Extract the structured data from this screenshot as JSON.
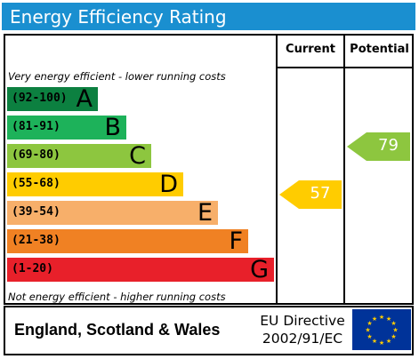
{
  "title": "Energy Efficiency Rating",
  "columns": {
    "current": "Current",
    "potential": "Potential"
  },
  "notes": {
    "top": "Very energy efficient - lower running costs",
    "bottom": "Not energy efficient - higher running costs"
  },
  "bands": [
    {
      "range": "(92-100)",
      "letter": "A",
      "color": "#0c8040"
    },
    {
      "range": "(81-91)",
      "letter": "B",
      "color": "#1db25a"
    },
    {
      "range": "(69-80)",
      "letter": "C",
      "color": "#8dc63f"
    },
    {
      "range": "(55-68)",
      "letter": "D",
      "color": "#ffcc00"
    },
    {
      "range": "(39-54)",
      "letter": "E",
      "color": "#f7af6a"
    },
    {
      "range": "(21-38)",
      "letter": "F",
      "color": "#f08123"
    },
    {
      "range": "(1-20)",
      "letter": "G",
      "color": "#e8202a"
    }
  ],
  "current": {
    "value": "57",
    "color": "#ffcc00"
  },
  "potential": {
    "value": "79",
    "color": "#8dc63f"
  },
  "footer": {
    "region": "England, Scotland & Wales",
    "directive_line1": "EU Directive",
    "directive_line2": "2002/91/EC",
    "flag_icon": "eu-flag-icon"
  }
}
